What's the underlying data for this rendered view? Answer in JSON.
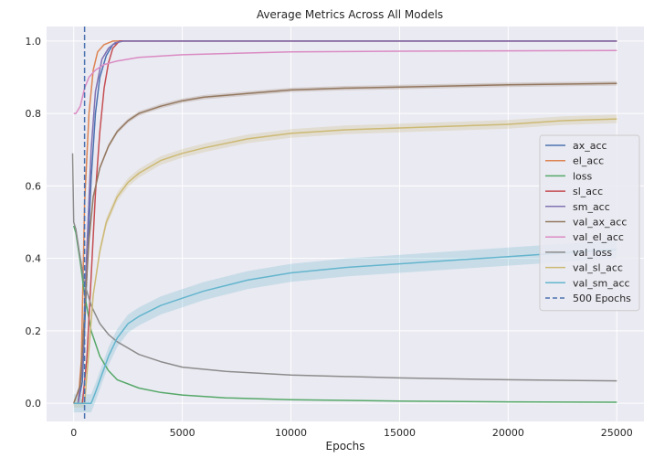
{
  "chart_data": {
    "type": "line",
    "title": "Average Metrics Across All Models",
    "xlabel": "Epochs",
    "ylabel": "",
    "xlim": [
      -1250,
      26250
    ],
    "ylim": [
      -0.05,
      1.04
    ],
    "x_ticks": [
      0,
      5000,
      10000,
      15000,
      20000,
      25000
    ],
    "x_tick_labels": [
      "0",
      "5000",
      "10000",
      "15000",
      "20000",
      "25000"
    ],
    "y_ticks": [
      0.0,
      0.2,
      0.4,
      0.6,
      0.8,
      1.0
    ],
    "y_tick_labels": [
      "0.0",
      "0.2",
      "0.4",
      "0.6",
      "0.8",
      "1.0"
    ],
    "grid": true,
    "legend_position": "center-right",
    "background_color": "#eaeaf2",
    "series": [
      {
        "name": "ax_acc",
        "color": "#4c72b0",
        "x": [
          0,
          200,
          400,
          600,
          800,
          1000,
          1200,
          1500,
          1800,
          2200,
          3000,
          25000
        ],
        "y": [
          0.0,
          0.0,
          0.06,
          0.35,
          0.62,
          0.8,
          0.9,
          0.96,
          0.99,
          1.0,
          1.0,
          1.0
        ]
      },
      {
        "name": "el_acc",
        "color": "#dd8452",
        "x": [
          0,
          200,
          350,
          500,
          700,
          900,
          1100,
          1400,
          1800,
          2200,
          25000
        ],
        "y": [
          0.0,
          0.0,
          0.12,
          0.55,
          0.8,
          0.92,
          0.97,
          0.99,
          1.0,
          1.0,
          1.0
        ]
      },
      {
        "name": "loss",
        "color": "#55a868",
        "x": [
          0,
          100,
          300,
          500,
          800,
          1200,
          1600,
          2000,
          3000,
          4000,
          5000,
          7000,
          10000,
          15000,
          20000,
          25000
        ],
        "y": [
          0.49,
          0.47,
          0.39,
          0.3,
          0.2,
          0.13,
          0.09,
          0.065,
          0.042,
          0.03,
          0.023,
          0.015,
          0.01,
          0.006,
          0.004,
          0.003
        ]
      },
      {
        "name": "sl_acc",
        "color": "#c44e52",
        "x": [
          0,
          400,
          600,
          800,
          1000,
          1200,
          1400,
          1600,
          1800,
          2100,
          2500,
          25000
        ],
        "y": [
          0.0,
          0.0,
          0.12,
          0.35,
          0.58,
          0.75,
          0.87,
          0.94,
          0.98,
          1.0,
          1.0,
          1.0
        ]
      },
      {
        "name": "sm_acc",
        "color": "#8172b3",
        "x": [
          0,
          200,
          400,
          600,
          800,
          1000,
          1300,
          1600,
          1900,
          2300,
          25000
        ],
        "y": [
          0.0,
          0.0,
          0.1,
          0.42,
          0.7,
          0.86,
          0.95,
          0.98,
          0.995,
          1.0,
          1.0
        ]
      },
      {
        "name": "val_ax_acc",
        "color": "#937860",
        "x": [
          0,
          300,
          500,
          700,
          900,
          1200,
          1600,
          2000,
          2500,
          3000,
          4000,
          5000,
          6000,
          8000,
          10000,
          12500,
          15000,
          17500,
          20000,
          22500,
          25000
        ],
        "y": [
          0.0,
          0.05,
          0.25,
          0.45,
          0.57,
          0.65,
          0.71,
          0.75,
          0.78,
          0.8,
          0.82,
          0.835,
          0.845,
          0.855,
          0.865,
          0.87,
          0.873,
          0.876,
          0.879,
          0.881,
          0.883
        ],
        "band": 0.006
      },
      {
        "name": "val_el_acc",
        "color": "#da8bc3",
        "x": [
          0,
          100,
          300,
          500,
          700,
          1000,
          1400,
          2000,
          3000,
          5000,
          10000,
          15000,
          20000,
          25000
        ],
        "y": [
          0.8,
          0.8,
          0.82,
          0.87,
          0.9,
          0.92,
          0.935,
          0.945,
          0.955,
          0.962,
          0.97,
          0.972,
          0.973,
          0.974
        ]
      },
      {
        "name": "val_loss",
        "color": "#8c8c8c",
        "x": [
          -50,
          0,
          100,
          250,
          500,
          800,
          1200,
          1600,
          2000,
          3000,
          4000,
          5000,
          7000,
          10000,
          15000,
          20000,
          25000
        ],
        "y": [
          0.69,
          0.5,
          0.48,
          0.42,
          0.33,
          0.27,
          0.22,
          0.19,
          0.17,
          0.135,
          0.115,
          0.1,
          0.088,
          0.078,
          0.07,
          0.065,
          0.062
        ]
      },
      {
        "name": "val_sl_acc",
        "color": "#ccb974",
        "x": [
          0,
          500,
          700,
          900,
          1200,
          1500,
          2000,
          2500,
          3000,
          4000,
          5000,
          6000,
          8000,
          10000,
          12500,
          15000,
          17500,
          20000,
          22500,
          25000
        ],
        "y": [
          0.0,
          0.0,
          0.15,
          0.3,
          0.42,
          0.5,
          0.57,
          0.61,
          0.635,
          0.67,
          0.69,
          0.705,
          0.73,
          0.745,
          0.755,
          0.76,
          0.765,
          0.77,
          0.78,
          0.785
        ],
        "band": 0.012
      },
      {
        "name": "val_sm_acc",
        "color": "#64b5cd",
        "x": [
          0,
          800,
          1000,
          1300,
          1600,
          2000,
          2500,
          3000,
          4000,
          5000,
          6000,
          7000,
          8000,
          10000,
          12500,
          15000,
          17500,
          20000,
          22500,
          25000
        ],
        "y": [
          0.0,
          0.0,
          0.03,
          0.08,
          0.13,
          0.18,
          0.22,
          0.24,
          0.27,
          0.29,
          0.31,
          0.325,
          0.34,
          0.36,
          0.375,
          0.385,
          0.395,
          0.405,
          0.415,
          0.425
        ],
        "band": 0.025
      }
    ],
    "vlines": [
      {
        "name": "500 Epochs",
        "x": 500,
        "color": "#4c72b0",
        "style": "dashed"
      }
    ]
  }
}
